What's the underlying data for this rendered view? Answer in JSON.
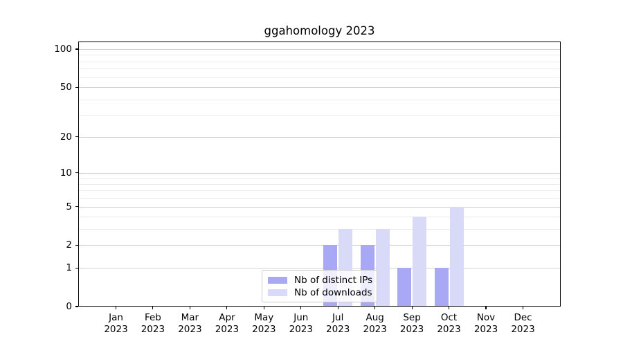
{
  "title": "ggahomology 2023",
  "legend": {
    "items": [
      {
        "label": "Nb of distinct IPs"
      },
      {
        "label": "Nb of downloads"
      }
    ]
  },
  "colors": {
    "bar_distinct_ips": "#a8a8f5",
    "bar_downloads": "#d9d9f8",
    "grid_major": "#d3d3d3",
    "grid_minor": "#eaeaea",
    "frame": "#000000",
    "background": "#ffffff",
    "text": "#000000"
  },
  "chart_data": {
    "type": "bar",
    "title": "ggahomology 2023",
    "scale": "log1p",
    "categories": [
      "Jan",
      "Feb",
      "Mar",
      "Apr",
      "May",
      "Jun",
      "Jul",
      "Aug",
      "Sep",
      "Oct",
      "Nov",
      "Dec"
    ],
    "category_year_label": "2023",
    "series": [
      {
        "name": "Nb of distinct IPs",
        "color_key": "bar_distinct_ips",
        "values": [
          0,
          0,
          0,
          0,
          0,
          0,
          2,
          2,
          1,
          1,
          0,
          0
        ]
      },
      {
        "name": "Nb of downloads",
        "color_key": "bar_downloads",
        "values": [
          0,
          0,
          0,
          0,
          0,
          0,
          3,
          3,
          4,
          5,
          0,
          0
        ]
      }
    ],
    "y_axis": {
      "tick_values": [
        0,
        1,
        2,
        5,
        10,
        20,
        50,
        100
      ],
      "minor_gridline_values": [
        3,
        4,
        6,
        7,
        8,
        9,
        30,
        40,
        60,
        70,
        80,
        90
      ],
      "max_tick": 100
    },
    "xlabel": "",
    "ylabel": "",
    "grid": true,
    "legend_position": "inside lower center"
  }
}
